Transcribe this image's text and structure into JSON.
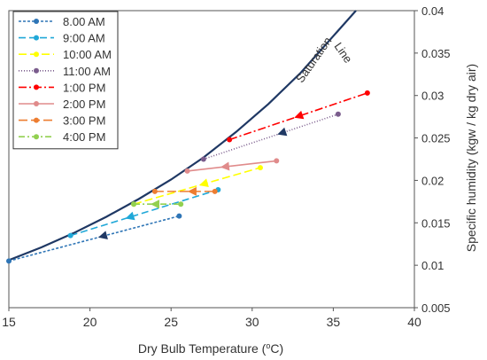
{
  "chart_data": {
    "type": "line",
    "xlabel": "Dry Bulb Temperature (",
    "xlabel_sup": "o",
    "xlabel_end": "C)",
    "ylabel": "Specific humidity (kgw / kg dry air)",
    "xlim": [
      15,
      40
    ],
    "ylim": [
      0.005,
      0.04
    ],
    "x_ticks": [
      "15",
      "20",
      "25",
      "30",
      "35",
      "40"
    ],
    "y_ticks": [
      "0.005",
      "0.01",
      "0.015",
      "0.02",
      "0.025",
      "0.03",
      "0.035",
      "0.04"
    ],
    "y_axis_position": "right",
    "grid": false,
    "legend_position": "top-left",
    "saturation_label": [
      "Saturation",
      "Line"
    ],
    "saturation_curve": {
      "color": "#1f3864",
      "x": [
        15,
        17,
        19,
        21,
        23,
        25,
        27,
        29,
        31,
        33,
        35,
        36.4
      ],
      "y": [
        0.0106,
        0.0121,
        0.0138,
        0.0157,
        0.0178,
        0.0201,
        0.0227,
        0.0257,
        0.029,
        0.0327,
        0.037,
        0.04
      ]
    },
    "series": [
      {
        "name": "8.00 AM",
        "color": "#2e75b6",
        "dash": "3,2",
        "x": [
          15,
          25.5
        ],
        "y": [
          0.0105,
          0.0158
        ],
        "arrow_at": 0.55,
        "arrow_dir": -1
      },
      {
        "name": "9:00 AM",
        "color": "#20a8d8",
        "dash": "8,4",
        "x": [
          18.8,
          27.9
        ],
        "y": [
          0.0135,
          0.0189
        ],
        "arrow_at": 0.4,
        "arrow_dir": -1
      },
      {
        "name": "10:00 AM",
        "color": "#ffff00",
        "dash": "9,4",
        "x": [
          22.7,
          30.5
        ],
        "y": [
          0.0172,
          0.0215
        ],
        "arrow_at": 0.55,
        "arrow_dir": -1
      },
      {
        "name": "11:00 AM",
        "color": "#7a5c8c",
        "dash": "1,2",
        "x": [
          27.0,
          35.3
        ],
        "y": [
          0.0225,
          0.0278
        ],
        "arrow_at": 0.58,
        "arrow_dir": -1
      },
      {
        "name": "1:00 PM",
        "color": "#ff0000",
        "dash": "9,3,2,3",
        "x": [
          28.6,
          37.1
        ],
        "y": [
          0.0248,
          0.0303
        ],
        "arrow_at": 0.5,
        "arrow_dir": -1
      },
      {
        "name": "2:00 PM",
        "color": "#e08b8b",
        "dash": "",
        "x": [
          26.0,
          31.5
        ],
        "y": [
          0.0211,
          0.0223
        ],
        "arrow_at": 0.42,
        "arrow_dir": -1
      },
      {
        "name": "3:00 PM",
        "color": "#ed7d31",
        "dash": "10,4",
        "x": [
          24.0,
          27.7
        ],
        "y": [
          0.0187,
          0.0187
        ],
        "arrow_at": 0.62,
        "arrow_dir": -1
      },
      {
        "name": "4:00 PM",
        "color": "#92d050",
        "dash": "7,3,2,3",
        "x": [
          22.7,
          25.6
        ],
        "y": [
          0.0172,
          0.0172
        ],
        "arrow_at": 0.45,
        "arrow_dir": -1
      }
    ],
    "arrow_color": "#1f3864"
  }
}
